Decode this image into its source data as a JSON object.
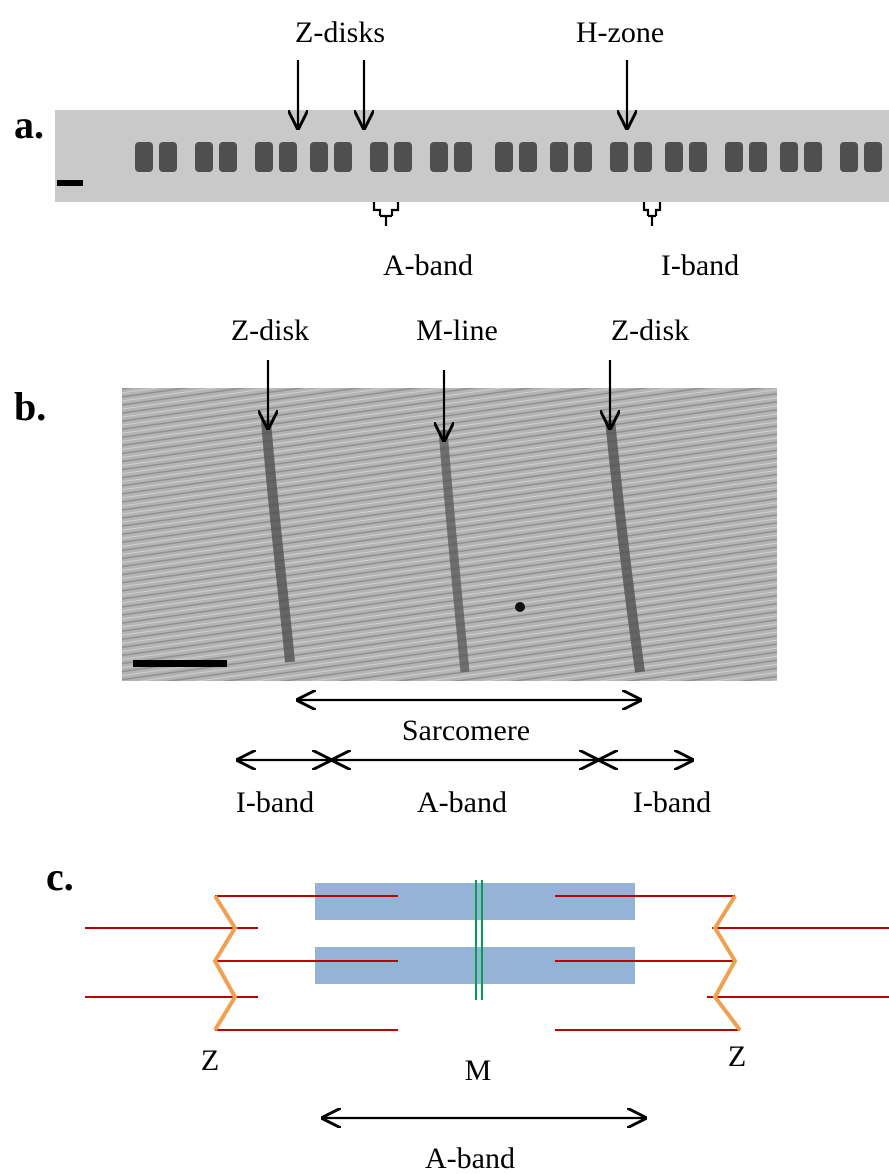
{
  "panel_a": {
    "label": "a.",
    "z_disks": "Z-disks",
    "h_zone": "H-zone",
    "a_band": "A-band",
    "i_band": "I-band"
  },
  "panel_b": {
    "label": "b.",
    "top_labels": [
      "Z-disk",
      "M-line",
      "Z-disk"
    ],
    "sarcomere": "Sarcomere",
    "spans": [
      "I-band",
      "A-band",
      "I-band"
    ]
  },
  "panel_c": {
    "label": "c.",
    "z_left": "Z",
    "m": "M",
    "z_right": "Z",
    "a_band": "A-band"
  }
}
